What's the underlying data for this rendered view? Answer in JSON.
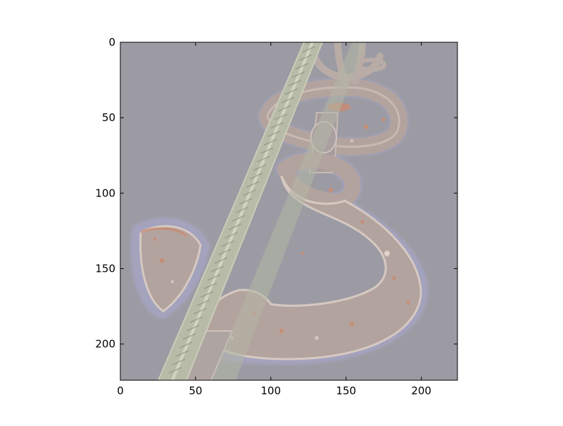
{
  "image_plot": {
    "x_ticks": [
      "0",
      "50",
      "100",
      "150",
      "200"
    ],
    "y_ticks": [
      "0",
      "50",
      "100",
      "150",
      "200"
    ],
    "xlim": [
      0,
      224
    ],
    "ylim": [
      224,
      0
    ],
    "x_tick_values": [
      0,
      50,
      100,
      150,
      200
    ],
    "y_tick_values": [
      0,
      50,
      100,
      150,
      200
    ],
    "colors": {
      "background": "#9c9ba3",
      "hook_fill": "#b3a39e",
      "hook_stroke": "#d6c9c2",
      "cable_fill": "#b7bba8",
      "cable_highlight": "#dadbcb",
      "rim_blue": "#a7a6c8",
      "rust_spots": "#c98a6e",
      "frame": "#000000"
    }
  }
}
